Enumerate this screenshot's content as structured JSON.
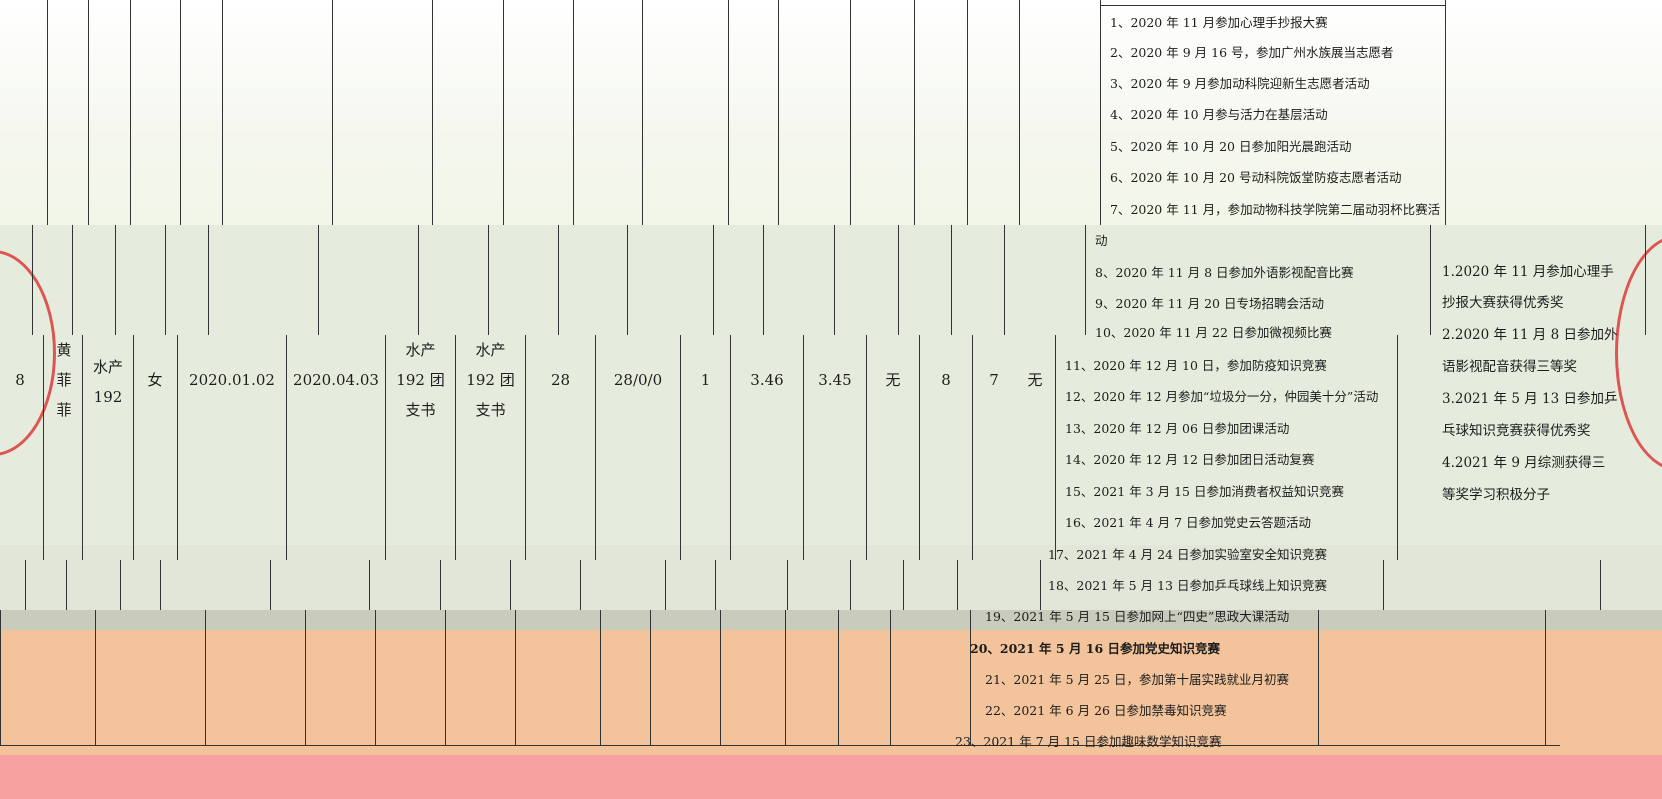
{
  "row": {
    "index": "8",
    "name_chars": [
      "黄",
      "菲",
      "菲"
    ],
    "class_lines": [
      "水产",
      "192"
    ],
    "gender": "女",
    "apply_date": "2020.01.02",
    "activist_date": "2020.04.03",
    "recommend_lines": [
      "水产",
      "192 团",
      "支书"
    ],
    "position_lines": [
      "水产",
      "192 团",
      "支书"
    ],
    "volunteer_hours": "28",
    "hours_split": "28/0/0",
    "count": "1",
    "gpa_1": "3.46",
    "gpa_2": "3.45",
    "penalty": "无",
    "rank_1": "8",
    "rank_2": "7",
    "other": "无"
  },
  "activities": [
    "1、2020 年 11 月参加心理手抄报大赛",
    "2、2020 年 9 月 16 号，参加广州水族展当志愿者",
    "3、2020 年 9 月参加动科院迎新生志愿者活动",
    "4、2020 年 10 月参与活力在基层活动",
    "5、2020 年 10 月 20 日参加阳光晨跑活动",
    "6、2020 年 10 月 20 号动科院饭堂防疫志愿者活动",
    "7、2020 年 11 月，参加动物科技学院第二届动羽杯比赛活",
    "动",
    "8、2020 年 11 月 8 日参加外语影视配音比赛",
    "9、2020 年 11 月 20 日专场招聘会活动",
    "10、2020 年 11 月 22 日参加微视频比赛",
    "11、2020 年 12 月 10 日，参加防疫知识竞赛",
    "12、2020 年 12 月参加“垃圾分一分，仲园美十分”活动",
    "13、2020 年 12 月 06 日参加团课活动",
    "14、2020 年 12 月 12 日参加团日活动复赛",
    "15、2021 年 3 月 15 日参加消费者权益知识竞赛",
    "16、2021 年 4 月 7 日参加党史云答题活动",
    "17、2021 年 4 月 24 日参加实验室安全知识竞赛",
    "18、2021 年 5 月 13 日参加乒乓球线上知识竞赛",
    "19、2021 年 5 月 15 日参加网上“四史”思政大课活动",
    "20、2021 年 5 月 16 日参加党史知识竞赛",
    "21、2021 年 5 月 25 日，参加第十届实践就业月初赛",
    "22、2021 年 6 月 26 日参加禁毒知识竞赛",
    "23、2021 年 7 月 15 日参加趣味数学知识竞赛"
  ],
  "awards": [
    "1.2020 年 11 月参加心理手",
    "抄报大赛获得优秀奖",
    "2.2020 年 11 月 8 日参加外",
    "语影视配音获得三等奖",
    "3.2021 年 5 月 13 日参加乒",
    "乓球知识竞赛获得优秀奖",
    "4.2021 年 9 月综测获得三",
    "等奖学习积极分子"
  ],
  "colors": {
    "seal_red": "#d93b3b",
    "band_orange": "#f3c49b",
    "band_pink": "#f7a2a0"
  }
}
